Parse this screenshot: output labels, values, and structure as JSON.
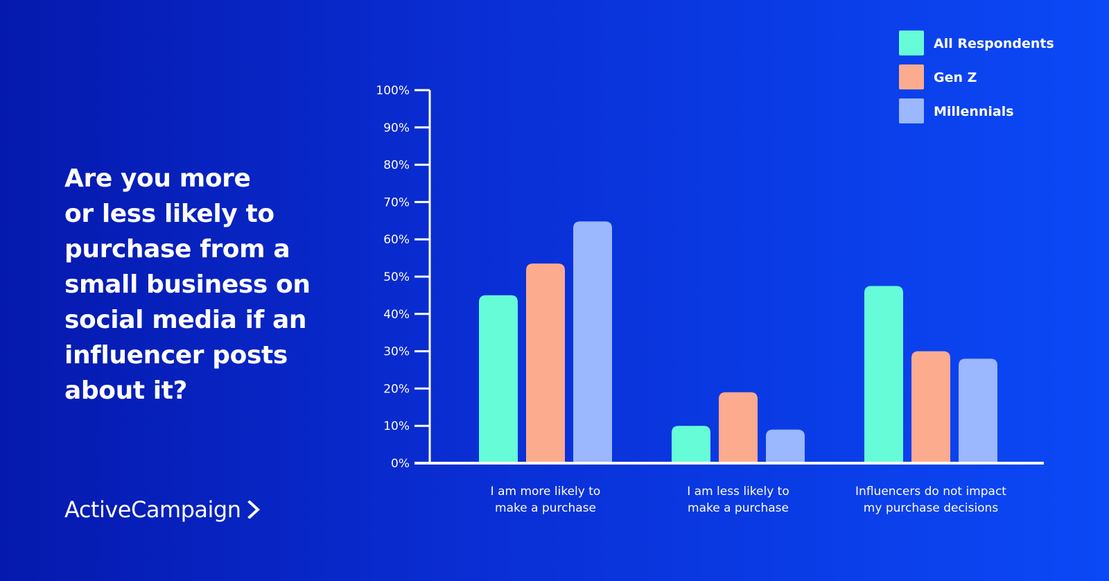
{
  "question": "Are you more\nor less likely to\npurchase from a\nsmall business on\nsocial media if an\ninfluencer posts\nabout it?",
  "brand": {
    "name": "ActiveCampaign",
    "icon": "chevron-right-icon"
  },
  "colors": {
    "background_start": "#0519ad",
    "background_end": "#0b49f6",
    "axis": "#ffffff"
  },
  "chart_data": {
    "type": "bar",
    "title": "",
    "xlabel": "",
    "ylabel": "",
    "ylim": [
      0,
      100
    ],
    "y_ticks": [
      "0%",
      "10%",
      "20%",
      "30%",
      "40%",
      "50%",
      "60%",
      "70%",
      "80%",
      "90%",
      "100%"
    ],
    "categories": [
      [
        "I am more likely to",
        "make a purchase"
      ],
      [
        "I am less likely to",
        "make a purchase"
      ],
      [
        "Influencers do not impact",
        "my purchase decisions"
      ]
    ],
    "series": [
      {
        "name": "All Respondents",
        "color": "#66fcd8",
        "values": [
          45,
          10,
          47.5
        ]
      },
      {
        "name": "Gen Z",
        "color": "#fdab8f",
        "values": [
          53.5,
          19,
          30
        ]
      },
      {
        "name": "Millennials",
        "color": "#9bb7fd",
        "values": [
          64.8,
          9,
          28
        ]
      }
    ],
    "legend_position": "top-right",
    "grid": false
  }
}
